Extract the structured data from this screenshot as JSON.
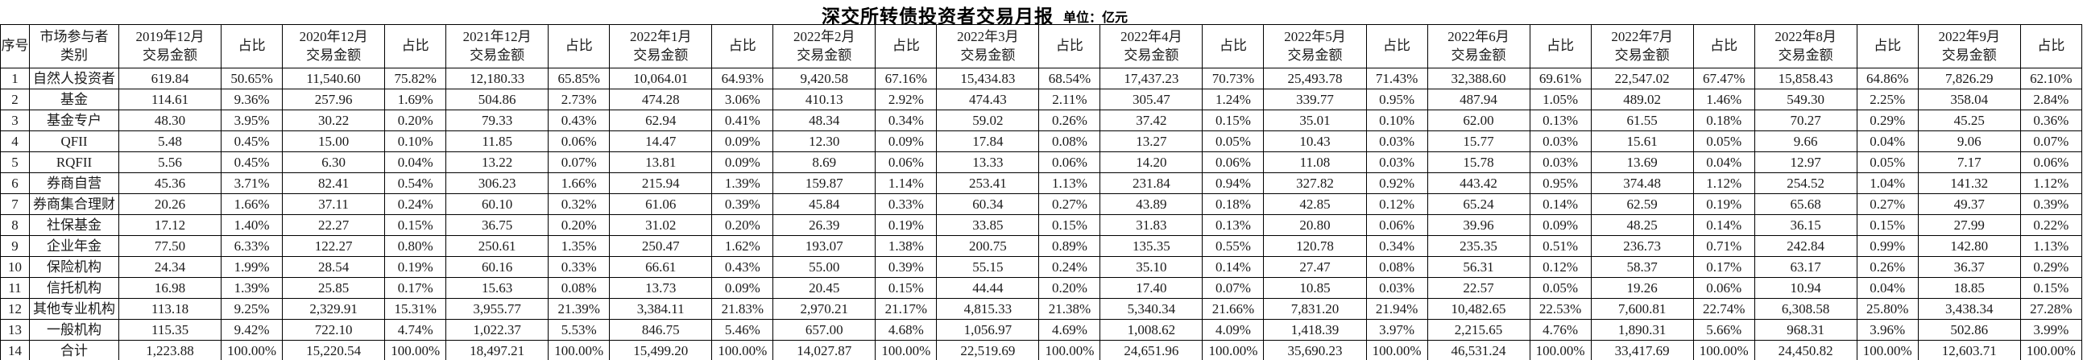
{
  "title": "深交所转债投资者交易月报",
  "unit_label": "单位：亿元",
  "table": {
    "headers": {
      "index": "序号",
      "category_line1": "市场参与者",
      "category_line2": "类别",
      "amount_suffix": "交易金额",
      "ratio": "占比",
      "periods": [
        "2019年12月",
        "2020年12月",
        "2021年12月",
        "2022年1月",
        "2022年2月",
        "2022年3月",
        "2022年4月",
        "2022年5月",
        "2022年6月",
        "2022年7月",
        "2022年8月",
        "2022年9月"
      ]
    },
    "rows": [
      {
        "no": "1",
        "category": "自然人投资者",
        "values": [
          "619.84",
          "50.65%",
          "11,540.60",
          "75.82%",
          "12,180.33",
          "65.85%",
          "10,064.01",
          "64.93%",
          "9,420.58",
          "67.16%",
          "15,434.83",
          "68.54%",
          "17,437.23",
          "70.73%",
          "25,493.78",
          "71.43%",
          "32,388.60",
          "69.61%",
          "22,547.02",
          "67.47%",
          "15,858.43",
          "64.86%",
          "7,826.29",
          "62.10%"
        ]
      },
      {
        "no": "2",
        "category": "基金",
        "values": [
          "114.61",
          "9.36%",
          "257.96",
          "1.69%",
          "504.86",
          "2.73%",
          "474.28",
          "3.06%",
          "410.13",
          "2.92%",
          "474.43",
          "2.11%",
          "305.47",
          "1.24%",
          "339.77",
          "0.95%",
          "487.94",
          "1.05%",
          "489.02",
          "1.46%",
          "549.30",
          "2.25%",
          "358.04",
          "2.84%"
        ]
      },
      {
        "no": "3",
        "category": "基金专户",
        "values": [
          "48.30",
          "3.95%",
          "30.22",
          "0.20%",
          "79.33",
          "0.43%",
          "62.94",
          "0.41%",
          "48.34",
          "0.34%",
          "59.02",
          "0.26%",
          "37.42",
          "0.15%",
          "35.01",
          "0.10%",
          "62.00",
          "0.13%",
          "61.55",
          "0.18%",
          "70.27",
          "0.29%",
          "45.25",
          "0.36%"
        ]
      },
      {
        "no": "4",
        "category": "QFII",
        "values": [
          "5.48",
          "0.45%",
          "15.00",
          "0.10%",
          "11.85",
          "0.06%",
          "14.47",
          "0.09%",
          "12.30",
          "0.09%",
          "17.84",
          "0.08%",
          "13.27",
          "0.05%",
          "10.43",
          "0.03%",
          "15.77",
          "0.03%",
          "15.61",
          "0.05%",
          "9.66",
          "0.04%",
          "9.06",
          "0.07%"
        ]
      },
      {
        "no": "5",
        "category": "RQFII",
        "values": [
          "5.56",
          "0.45%",
          "6.30",
          "0.04%",
          "13.22",
          "0.07%",
          "13.81",
          "0.09%",
          "8.69",
          "0.06%",
          "13.33",
          "0.06%",
          "14.20",
          "0.06%",
          "11.08",
          "0.03%",
          "15.78",
          "0.03%",
          "13.69",
          "0.04%",
          "12.97",
          "0.05%",
          "7.17",
          "0.06%"
        ]
      },
      {
        "no": "6",
        "category": "券商自营",
        "values": [
          "45.36",
          "3.71%",
          "82.41",
          "0.54%",
          "306.23",
          "1.66%",
          "215.94",
          "1.39%",
          "159.87",
          "1.14%",
          "253.41",
          "1.13%",
          "231.84",
          "0.94%",
          "327.82",
          "0.92%",
          "443.42",
          "0.95%",
          "374.48",
          "1.12%",
          "254.52",
          "1.04%",
          "141.32",
          "1.12%"
        ]
      },
      {
        "no": "7",
        "category": "券商集合理财",
        "values": [
          "20.26",
          "1.66%",
          "37.11",
          "0.24%",
          "60.10",
          "0.32%",
          "61.06",
          "0.39%",
          "45.84",
          "0.33%",
          "60.34",
          "0.27%",
          "43.89",
          "0.18%",
          "42.85",
          "0.12%",
          "65.24",
          "0.14%",
          "62.59",
          "0.19%",
          "65.68",
          "0.27%",
          "49.37",
          "0.39%"
        ]
      },
      {
        "no": "8",
        "category": "社保基金",
        "values": [
          "17.12",
          "1.40%",
          "22.27",
          "0.15%",
          "36.75",
          "0.20%",
          "31.02",
          "0.20%",
          "26.39",
          "0.19%",
          "33.85",
          "0.15%",
          "31.83",
          "0.13%",
          "20.80",
          "0.06%",
          "39.96",
          "0.09%",
          "48.25",
          "0.14%",
          "36.15",
          "0.15%",
          "27.99",
          "0.22%"
        ]
      },
      {
        "no": "9",
        "category": "企业年金",
        "values": [
          "77.50",
          "6.33%",
          "122.27",
          "0.80%",
          "250.61",
          "1.35%",
          "250.47",
          "1.62%",
          "193.07",
          "1.38%",
          "200.75",
          "0.89%",
          "135.35",
          "0.55%",
          "120.78",
          "0.34%",
          "235.35",
          "0.51%",
          "236.73",
          "0.71%",
          "242.84",
          "0.99%",
          "142.80",
          "1.13%"
        ]
      },
      {
        "no": "10",
        "category": "保险机构",
        "values": [
          "24.34",
          "1.99%",
          "28.54",
          "0.19%",
          "60.16",
          "0.33%",
          "66.61",
          "0.43%",
          "55.00",
          "0.39%",
          "55.15",
          "0.24%",
          "35.10",
          "0.14%",
          "27.47",
          "0.08%",
          "56.31",
          "0.12%",
          "58.37",
          "0.17%",
          "63.17",
          "0.26%",
          "36.37",
          "0.29%"
        ]
      },
      {
        "no": "11",
        "category": "信托机构",
        "values": [
          "16.98",
          "1.39%",
          "25.85",
          "0.17%",
          "15.63",
          "0.08%",
          "13.73",
          "0.09%",
          "20.45",
          "0.15%",
          "44.44",
          "0.20%",
          "17.40",
          "0.07%",
          "10.85",
          "0.03%",
          "22.57",
          "0.05%",
          "19.26",
          "0.06%",
          "10.94",
          "0.04%",
          "18.85",
          "0.15%"
        ]
      },
      {
        "no": "12",
        "category": "其他专业机构",
        "values": [
          "113.18",
          "9.25%",
          "2,329.91",
          "15.31%",
          "3,955.77",
          "21.39%",
          "3,384.11",
          "21.83%",
          "2,970.21",
          "21.17%",
          "4,815.33",
          "21.38%",
          "5,340.34",
          "21.66%",
          "7,831.20",
          "21.94%",
          "10,482.65",
          "22.53%",
          "7,600.81",
          "22.74%",
          "6,308.58",
          "25.80%",
          "3,438.34",
          "27.28%"
        ]
      },
      {
        "no": "13",
        "category": "一般机构",
        "values": [
          "115.35",
          "9.42%",
          "722.10",
          "4.74%",
          "1,022.37",
          "5.53%",
          "846.75",
          "5.46%",
          "657.00",
          "4.68%",
          "1,056.97",
          "4.69%",
          "1,008.62",
          "4.09%",
          "1,418.39",
          "3.97%",
          "2,215.65",
          "4.76%",
          "1,890.31",
          "5.66%",
          "968.31",
          "3.96%",
          "502.86",
          "3.99%"
        ]
      },
      {
        "no": "14",
        "category": "合计",
        "values": [
          "1,223.88",
          "100.00%",
          "15,220.54",
          "100.00%",
          "18,497.21",
          "100.00%",
          "15,499.20",
          "100.00%",
          "14,027.87",
          "100.00%",
          "22,519.69",
          "100.00%",
          "24,651.96",
          "100.00%",
          "35,690.23",
          "100.00%",
          "46,531.24",
          "100.00%",
          "33,417.69",
          "100.00%",
          "24,450.82",
          "100.00%",
          "12,603.71",
          "100.00%"
        ]
      }
    ],
    "layout": {
      "index_col_width": 36,
      "category_col_width": 111,
      "amount_col_width": 127,
      "ratio_col_width": 76
    }
  }
}
